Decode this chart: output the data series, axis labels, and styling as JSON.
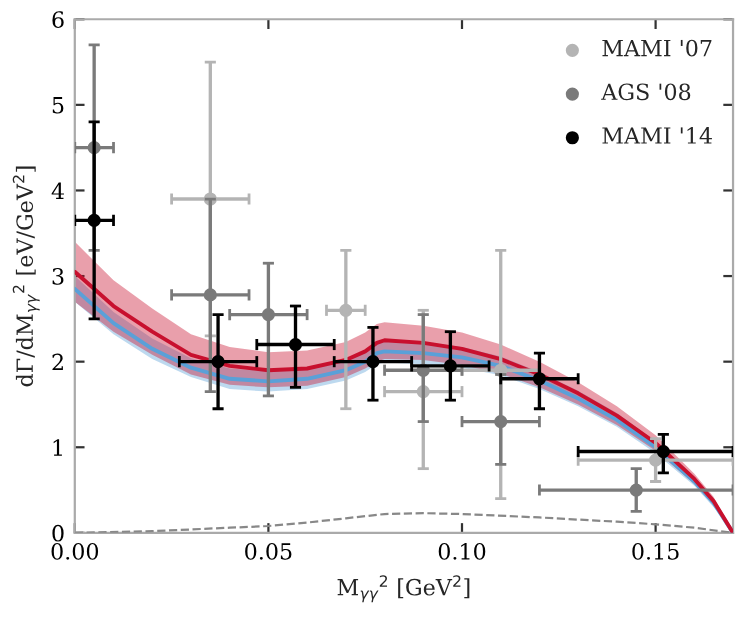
{
  "chart_data": {
    "type": "scatter",
    "xlabel": "M$_{γγ}$$^{2}$ [GeV$^{2}$]",
    "ylabel": "dΓ/dM$_{γγ}$$^{2}$ [eV/GeV$^{2}$]",
    "xlim": [
      0,
      0.17
    ],
    "ylim": [
      0,
      6
    ],
    "xticks": [
      {
        "value": 0,
        "label": "0.00"
      },
      0.05,
      {
        "value": 0.1,
        "label": "0.10"
      },
      0.15
    ],
    "yticks": [
      0,
      1,
      2,
      3,
      4,
      5,
      6
    ],
    "grid": false,
    "legend": "top right",
    "marker": "circle",
    "series": [
      {
        "type": "line",
        "color": "#5aa0d8",
        "x": [
          0,
          0.01,
          0.02,
          0.03,
          0.04,
          0.05,
          0.06,
          0.07,
          0.075,
          0.078,
          0.08,
          0.09,
          0.1,
          0.11,
          0.12,
          0.13,
          0.14,
          0.15,
          0.16,
          0.165,
          0.17
        ],
        "values": [
          2.85,
          2.45,
          2.15,
          1.93,
          1.8,
          1.77,
          1.8,
          1.9,
          2.0,
          2.1,
          2.12,
          2.1,
          2.05,
          1.95,
          1.78,
          1.57,
          1.32,
          1.0,
          0.6,
          0.35,
          0.0
        ],
        "lower": [
          2.7,
          2.32,
          2.03,
          1.82,
          1.68,
          1.65,
          1.68,
          1.78,
          1.88,
          1.97,
          1.99,
          1.97,
          1.93,
          1.84,
          1.68,
          1.48,
          1.24,
          0.93,
          0.55,
          0.3,
          0.0
        ],
        "upper": [
          3.0,
          2.58,
          2.27,
          2.04,
          1.92,
          1.89,
          1.92,
          2.02,
          2.12,
          2.23,
          2.25,
          2.23,
          2.17,
          2.06,
          1.88,
          1.66,
          1.4,
          1.07,
          0.65,
          0.4,
          0.0
        ],
        "line_style": "solid",
        "marker": "none"
      },
      {
        "type": "line",
        "color": "#c8102e",
        "x": [
          0,
          0.01,
          0.02,
          0.03,
          0.04,
          0.05,
          0.06,
          0.07,
          0.075,
          0.078,
          0.08,
          0.09,
          0.1,
          0.11,
          0.12,
          0.13,
          0.14,
          0.15,
          0.16,
          0.165,
          0.17
        ],
        "values": [
          3.05,
          2.65,
          2.35,
          2.08,
          1.95,
          1.9,
          1.92,
          2.02,
          2.12,
          2.22,
          2.25,
          2.22,
          2.15,
          2.03,
          1.85,
          1.63,
          1.37,
          1.05,
          0.63,
          0.37,
          0.0
        ],
        "lower": [
          2.7,
          2.35,
          2.08,
          1.85,
          1.73,
          1.7,
          1.72,
          1.82,
          1.92,
          2.0,
          2.03,
          2.02,
          1.96,
          1.86,
          1.7,
          1.5,
          1.26,
          0.96,
          0.57,
          0.32,
          0.0
        ],
        "upper": [
          3.4,
          2.95,
          2.62,
          2.32,
          2.17,
          2.11,
          2.13,
          2.23,
          2.34,
          2.44,
          2.46,
          2.42,
          2.34,
          2.2,
          2.0,
          1.76,
          1.48,
          1.14,
          0.69,
          0.42,
          0.0
        ],
        "line_style": "solid",
        "marker": "none"
      },
      {
        "type": "line",
        "color": "#888888",
        "x": [
          0,
          0.02,
          0.04,
          0.05,
          0.06,
          0.07,
          0.08,
          0.09,
          0.1,
          0.12,
          0.14,
          0.15,
          0.16,
          0.17
        ],
        "values": [
          0,
          0.02,
          0.06,
          0.08,
          0.12,
          0.17,
          0.22,
          0.23,
          0.22,
          0.18,
          0.13,
          0.1,
          0.06,
          0
        ],
        "line_style": "dashed",
        "marker": "none"
      },
      {
        "name": "MAMI '07",
        "color": "#b4b4b4",
        "x": [
          0.035,
          0.07,
          0.09,
          0.11,
          0.15
        ],
        "values": [
          3.9,
          2.6,
          1.65,
          1.9,
          0.85
        ],
        "errors": [
          [
            2.3,
            5.5
          ],
          [
            1.45,
            3.3
          ],
          [
            0.75,
            2.6
          ],
          [
            0.4,
            3.3
          ],
          [
            0.6,
            1.1
          ]
        ],
        "xerrors": [
          [
            0.025,
            0.045
          ],
          [
            0.065,
            0.075
          ],
          [
            0.08,
            0.1
          ],
          [
            0.1,
            0.12
          ],
          [
            0.13,
            0.17
          ]
        ]
      },
      {
        "name": "AGS '08",
        "color": "#7a7a7a",
        "x": [
          0.005,
          0.035,
          0.05,
          0.09,
          0.11,
          0.145
        ],
        "values": [
          4.5,
          2.78,
          2.55,
          1.9,
          1.3,
          0.5
        ],
        "errors": [
          [
            3.3,
            5.7
          ],
          [
            1.65,
            3.9
          ],
          [
            1.6,
            3.15
          ],
          [
            1.3,
            2.55
          ],
          [
            0.8,
            1.85
          ],
          [
            0.25,
            0.75
          ]
        ],
        "xerrors": [
          [
            0,
            0.01
          ],
          [
            0.025,
            0.045
          ],
          [
            0.04,
            0.06
          ],
          [
            0.08,
            0.1
          ],
          [
            0.1,
            0.12
          ],
          [
            0.12,
            0.17
          ]
        ]
      },
      {
        "name": "MAMI '14",
        "color": "#000000",
        "x": [
          0.005,
          0.037,
          0.057,
          0.077,
          0.097,
          0.12,
          0.152
        ],
        "values": [
          3.65,
          2.0,
          2.2,
          2.0,
          1.95,
          1.8,
          0.95
        ],
        "errors": [
          [
            2.5,
            4.8
          ],
          [
            1.45,
            2.55
          ],
          [
            1.7,
            2.65
          ],
          [
            1.55,
            2.4
          ],
          [
            1.55,
            2.35
          ],
          [
            1.45,
            2.1
          ],
          [
            0.7,
            1.15
          ]
        ],
        "xerrors": [
          [
            0,
            0.01
          ],
          [
            0.027,
            0.047
          ],
          [
            0.047,
            0.067
          ],
          [
            0.067,
            0.087
          ],
          [
            0.087,
            0.107
          ],
          [
            0.11,
            0.13
          ],
          [
            0.13,
            0.17
          ]
        ]
      }
    ]
  }
}
